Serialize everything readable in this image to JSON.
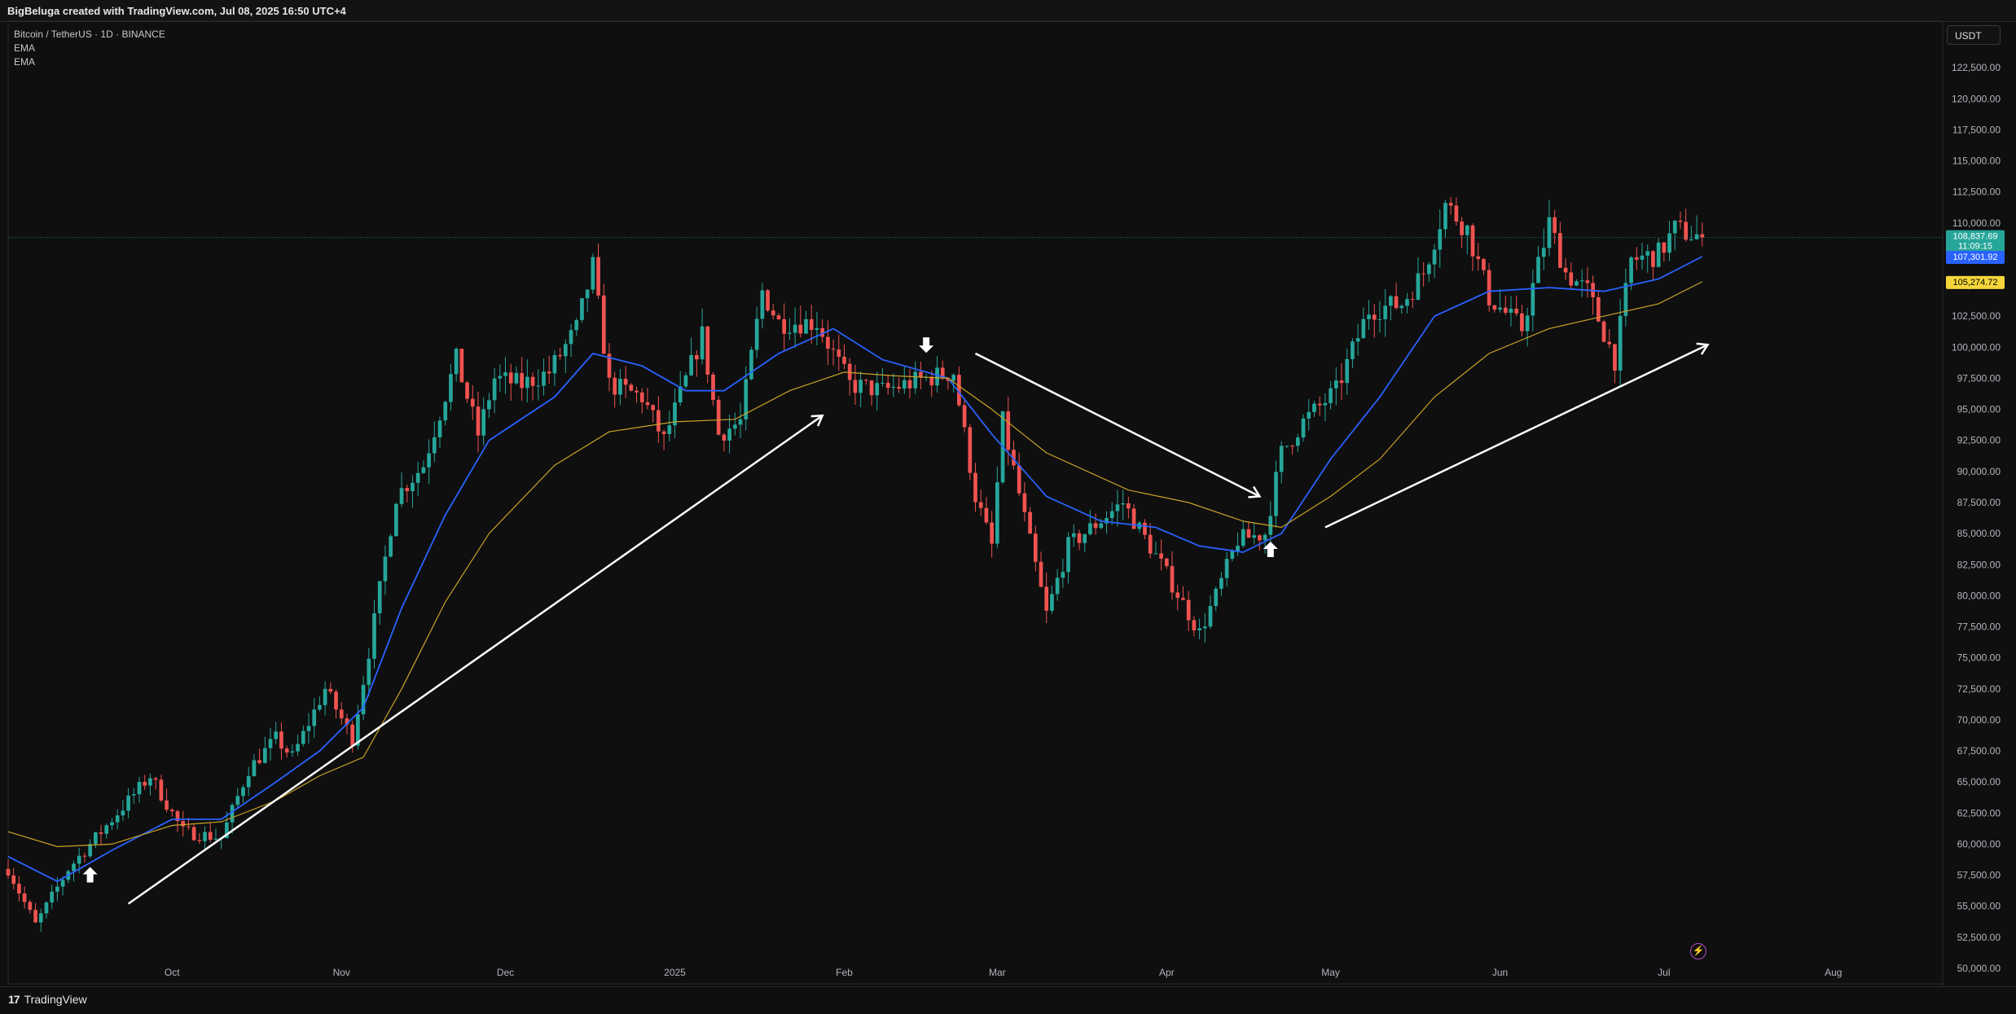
{
  "header": {
    "caption": "BigBeluga created with TradingView.com, Jul 08, 2025 16:50 UTC+4"
  },
  "legend": {
    "symbol": "Bitcoin / TetherUS · 1D · BINANCE",
    "ema1": "EMA",
    "ema2": "EMA"
  },
  "currency_button": "USDT",
  "footer": {
    "brand": "TradingView"
  },
  "colors": {
    "bull": "#26a69a",
    "bear": "#ef5350",
    "ema_fast": "#2962ff",
    "ema_slow": "#c9a227",
    "arrows": "#ffffff"
  },
  "icons": [
    "up-arrow-icon",
    "down-arrow-icon",
    "lightning-icon",
    "tradingview-logo-icon"
  ],
  "chart_data": {
    "type": "candlestick",
    "symbol": "BTCUSDT",
    "interval": "1D",
    "exchange": "BINANCE",
    "x_range": [
      "2024-09-01",
      "2025-08-21"
    ],
    "y_range": [
      48750,
      126250
    ],
    "y_ticks": [
      50000,
      52500,
      55000,
      57500,
      60000,
      62500,
      65000,
      67500,
      70000,
      72500,
      75000,
      77500,
      80000,
      82500,
      85000,
      87500,
      90000,
      92500,
      95000,
      97500,
      100000,
      102500,
      105000,
      107500,
      110000,
      112500,
      115000,
      117500,
      120000,
      122500,
      125000
    ],
    "y_tick_labels": [
      "50,000.00",
      "52,500.00",
      "55,000.00",
      "57,500.00",
      "60,000.00",
      "62,500.00",
      "65,000.00",
      "67,500.00",
      "70,000.00",
      "72,500.00",
      "75,000.00",
      "77,500.00",
      "80,000.00",
      "82,500.00",
      "85,000.00",
      "87,500.00",
      "90,000.00",
      "92,500.00",
      "95,000.00",
      "97,500.00",
      "100,000.00",
      "102,500.00",
      "105,000.00",
      "107,500.00",
      "110,000.00",
      "112,500.00",
      "115,000.00",
      "117,500.00",
      "120,000.00",
      "122,500.00",
      "125,000.00"
    ],
    "x_ticks": [
      {
        "label": "Oct",
        "date": "2024-10-01"
      },
      {
        "label": "Nov",
        "date": "2024-11-01"
      },
      {
        "label": "Dec",
        "date": "2024-12-01"
      },
      {
        "label": "2025",
        "date": "2025-01-01"
      },
      {
        "label": "Feb",
        "date": "2025-02-01"
      },
      {
        "label": "Mar",
        "date": "2025-03-01"
      },
      {
        "label": "Apr",
        "date": "2025-04-01"
      },
      {
        "label": "May",
        "date": "2025-05-01"
      },
      {
        "label": "Jun",
        "date": "2025-06-01"
      },
      {
        "label": "Jul",
        "date": "2025-07-01"
      },
      {
        "label": "Aug",
        "date": "2025-08-01"
      }
    ],
    "price_path": [
      [
        "2024-09-01",
        58000
      ],
      [
        "2024-09-06",
        53500
      ],
      [
        "2024-09-12",
        58000
      ],
      [
        "2024-09-18",
        61000
      ],
      [
        "2024-09-27",
        65500
      ],
      [
        "2024-10-03",
        61000
      ],
      [
        "2024-10-10",
        60500
      ],
      [
        "2024-10-15",
        66000
      ],
      [
        "2024-10-20",
        68500
      ],
      [
        "2024-10-23",
        67000
      ],
      [
        "2024-10-29",
        72500
      ],
      [
        "2024-11-03",
        68500
      ],
      [
        "2024-11-06",
        75500
      ],
      [
        "2024-11-11",
        88000
      ],
      [
        "2024-11-16",
        90500
      ],
      [
        "2024-11-22",
        99000
      ],
      [
        "2024-11-26",
        93000
      ],
      [
        "2024-11-29",
        97500
      ],
      [
        "2024-12-04",
        97000
      ],
      [
        "2024-12-09",
        98000
      ],
      [
        "2024-12-14",
        101500
      ],
      [
        "2024-12-17",
        106500
      ],
      [
        "2024-12-20",
        97000
      ],
      [
        "2024-12-26",
        96000
      ],
      [
        "2024-12-30",
        92500
      ],
      [
        "2025-01-06",
        101000
      ],
      [
        "2025-01-09",
        93000
      ],
      [
        "2025-01-13",
        94000
      ],
      [
        "2025-01-17",
        104500
      ],
      [
        "2025-01-20",
        102000
      ],
      [
        "2025-01-27",
        102000
      ],
      [
        "2025-02-02",
        97000
      ],
      [
        "2025-02-08",
        96500
      ],
      [
        "2025-02-16",
        97500
      ],
      [
        "2025-02-21",
        98000
      ],
      [
        "2025-02-25",
        88000
      ],
      [
        "2025-02-28",
        84000
      ],
      [
        "2025-03-02",
        94000
      ],
      [
        "2025-03-10",
        78500
      ],
      [
        "2025-03-14",
        84000
      ],
      [
        "2025-03-24",
        87500
      ],
      [
        "2025-03-31",
        82500
      ],
      [
        "2025-04-07",
        77000
      ],
      [
        "2025-04-10",
        80000
      ],
      [
        "2025-04-14",
        84500
      ],
      [
        "2025-04-19",
        85000
      ],
      [
        "2025-04-22",
        91500
      ],
      [
        "2025-04-26",
        94000
      ],
      [
        "2025-05-02",
        96500
      ],
      [
        "2025-05-08",
        103000
      ],
      [
        "2025-05-14",
        103500
      ],
      [
        "2025-05-18",
        106000
      ],
      [
        "2025-05-22",
        111500
      ],
      [
        "2025-05-26",
        109500
      ],
      [
        "2025-05-30",
        104000
      ],
      [
        "2025-06-05",
        101500
      ],
      [
        "2025-06-10",
        110000
      ],
      [
        "2025-06-13",
        106000
      ],
      [
        "2025-06-17",
        104500
      ],
      [
        "2025-06-22",
        99000
      ],
      [
        "2025-06-25",
        107000
      ],
      [
        "2025-06-30",
        107500
      ],
      [
        "2025-07-03",
        109500
      ],
      [
        "2025-07-08",
        108837.69
      ]
    ],
    "last_price": {
      "value": 108837.69,
      "label": "108,837.69",
      "countdown": "11:09:15"
    },
    "series": [
      {
        "name": "EMA",
        "color": "#2962ff",
        "last_value": 107301.92,
        "last_label": "107,301.92",
        "path": [
          [
            "2024-09-01",
            59000
          ],
          [
            "2024-09-10",
            57000
          ],
          [
            "2024-09-20",
            59500
          ],
          [
            "2024-10-01",
            62000
          ],
          [
            "2024-10-10",
            62000
          ],
          [
            "2024-10-20",
            65000
          ],
          [
            "2024-10-28",
            67500
          ],
          [
            "2024-11-05",
            71000
          ],
          [
            "2024-11-12",
            79000
          ],
          [
            "2024-11-20",
            86500
          ],
          [
            "2024-11-28",
            92500
          ],
          [
            "2024-12-10",
            96000
          ],
          [
            "2024-12-17",
            99500
          ],
          [
            "2024-12-26",
            98500
          ],
          [
            "2025-01-03",
            96500
          ],
          [
            "2025-01-10",
            96500
          ],
          [
            "2025-01-20",
            99500
          ],
          [
            "2025-01-30",
            101500
          ],
          [
            "2025-02-08",
            99000
          ],
          [
            "2025-02-20",
            97500
          ],
          [
            "2025-02-28",
            93000
          ],
          [
            "2025-03-10",
            88000
          ],
          [
            "2025-03-20",
            86000
          ],
          [
            "2025-03-30",
            85500
          ],
          [
            "2025-04-07",
            84000
          ],
          [
            "2025-04-15",
            83500
          ],
          [
            "2025-04-22",
            85000
          ],
          [
            "2025-05-01",
            91000
          ],
          [
            "2025-05-10",
            96000
          ],
          [
            "2025-05-20",
            102500
          ],
          [
            "2025-05-30",
            104500
          ],
          [
            "2025-06-10",
            104800
          ],
          [
            "2025-06-20",
            104500
          ],
          [
            "2025-06-30",
            105500
          ],
          [
            "2025-07-08",
            107301.92
          ]
        ]
      },
      {
        "name": "EMA",
        "color": "#c9a227",
        "last_value": 105274.72,
        "last_label": "105,274.72",
        "path": [
          [
            "2024-09-01",
            61000
          ],
          [
            "2024-09-10",
            59800
          ],
          [
            "2024-09-20",
            60000
          ],
          [
            "2024-10-01",
            61500
          ],
          [
            "2024-10-10",
            61800
          ],
          [
            "2024-10-20",
            63500
          ],
          [
            "2024-10-28",
            65500
          ],
          [
            "2024-11-05",
            67000
          ],
          [
            "2024-11-12",
            72500
          ],
          [
            "2024-11-20",
            79500
          ],
          [
            "2024-11-28",
            85000
          ],
          [
            "2024-12-10",
            90500
          ],
          [
            "2024-12-20",
            93200
          ],
          [
            "2025-01-01",
            94000
          ],
          [
            "2025-01-12",
            94200
          ],
          [
            "2025-01-22",
            96500
          ],
          [
            "2025-02-01",
            98000
          ],
          [
            "2025-02-10",
            97700
          ],
          [
            "2025-02-20",
            97500
          ],
          [
            "2025-02-28",
            95000
          ],
          [
            "2025-03-10",
            91500
          ],
          [
            "2025-03-25",
            88500
          ],
          [
            "2025-04-05",
            87500
          ],
          [
            "2025-04-15",
            86000
          ],
          [
            "2025-04-22",
            85500
          ],
          [
            "2025-05-01",
            88000
          ],
          [
            "2025-05-10",
            91000
          ],
          [
            "2025-05-20",
            96000
          ],
          [
            "2025-05-30",
            99500
          ],
          [
            "2025-06-10",
            101500
          ],
          [
            "2025-06-20",
            102500
          ],
          [
            "2025-06-30",
            103500
          ],
          [
            "2025-07-08",
            105274.72
          ]
        ]
      }
    ],
    "annotations": {
      "trend_arrows": [
        {
          "from": [
            "2024-09-23",
            55200
          ],
          "to": [
            "2025-01-28",
            94500
          ]
        },
        {
          "from": [
            "2025-02-25",
            99500
          ],
          "to": [
            "2025-04-18",
            88000
          ]
        },
        {
          "from": [
            "2025-04-30",
            85500
          ],
          "to": [
            "2025-07-09",
            100200
          ]
        }
      ],
      "signal_markers": [
        {
          "type": "up",
          "date": "2024-09-16",
          "price": 57500
        },
        {
          "type": "down",
          "date": "2025-02-16",
          "price": 100200
        },
        {
          "type": "up",
          "date": "2025-04-20",
          "price": 83700
        }
      ]
    }
  }
}
